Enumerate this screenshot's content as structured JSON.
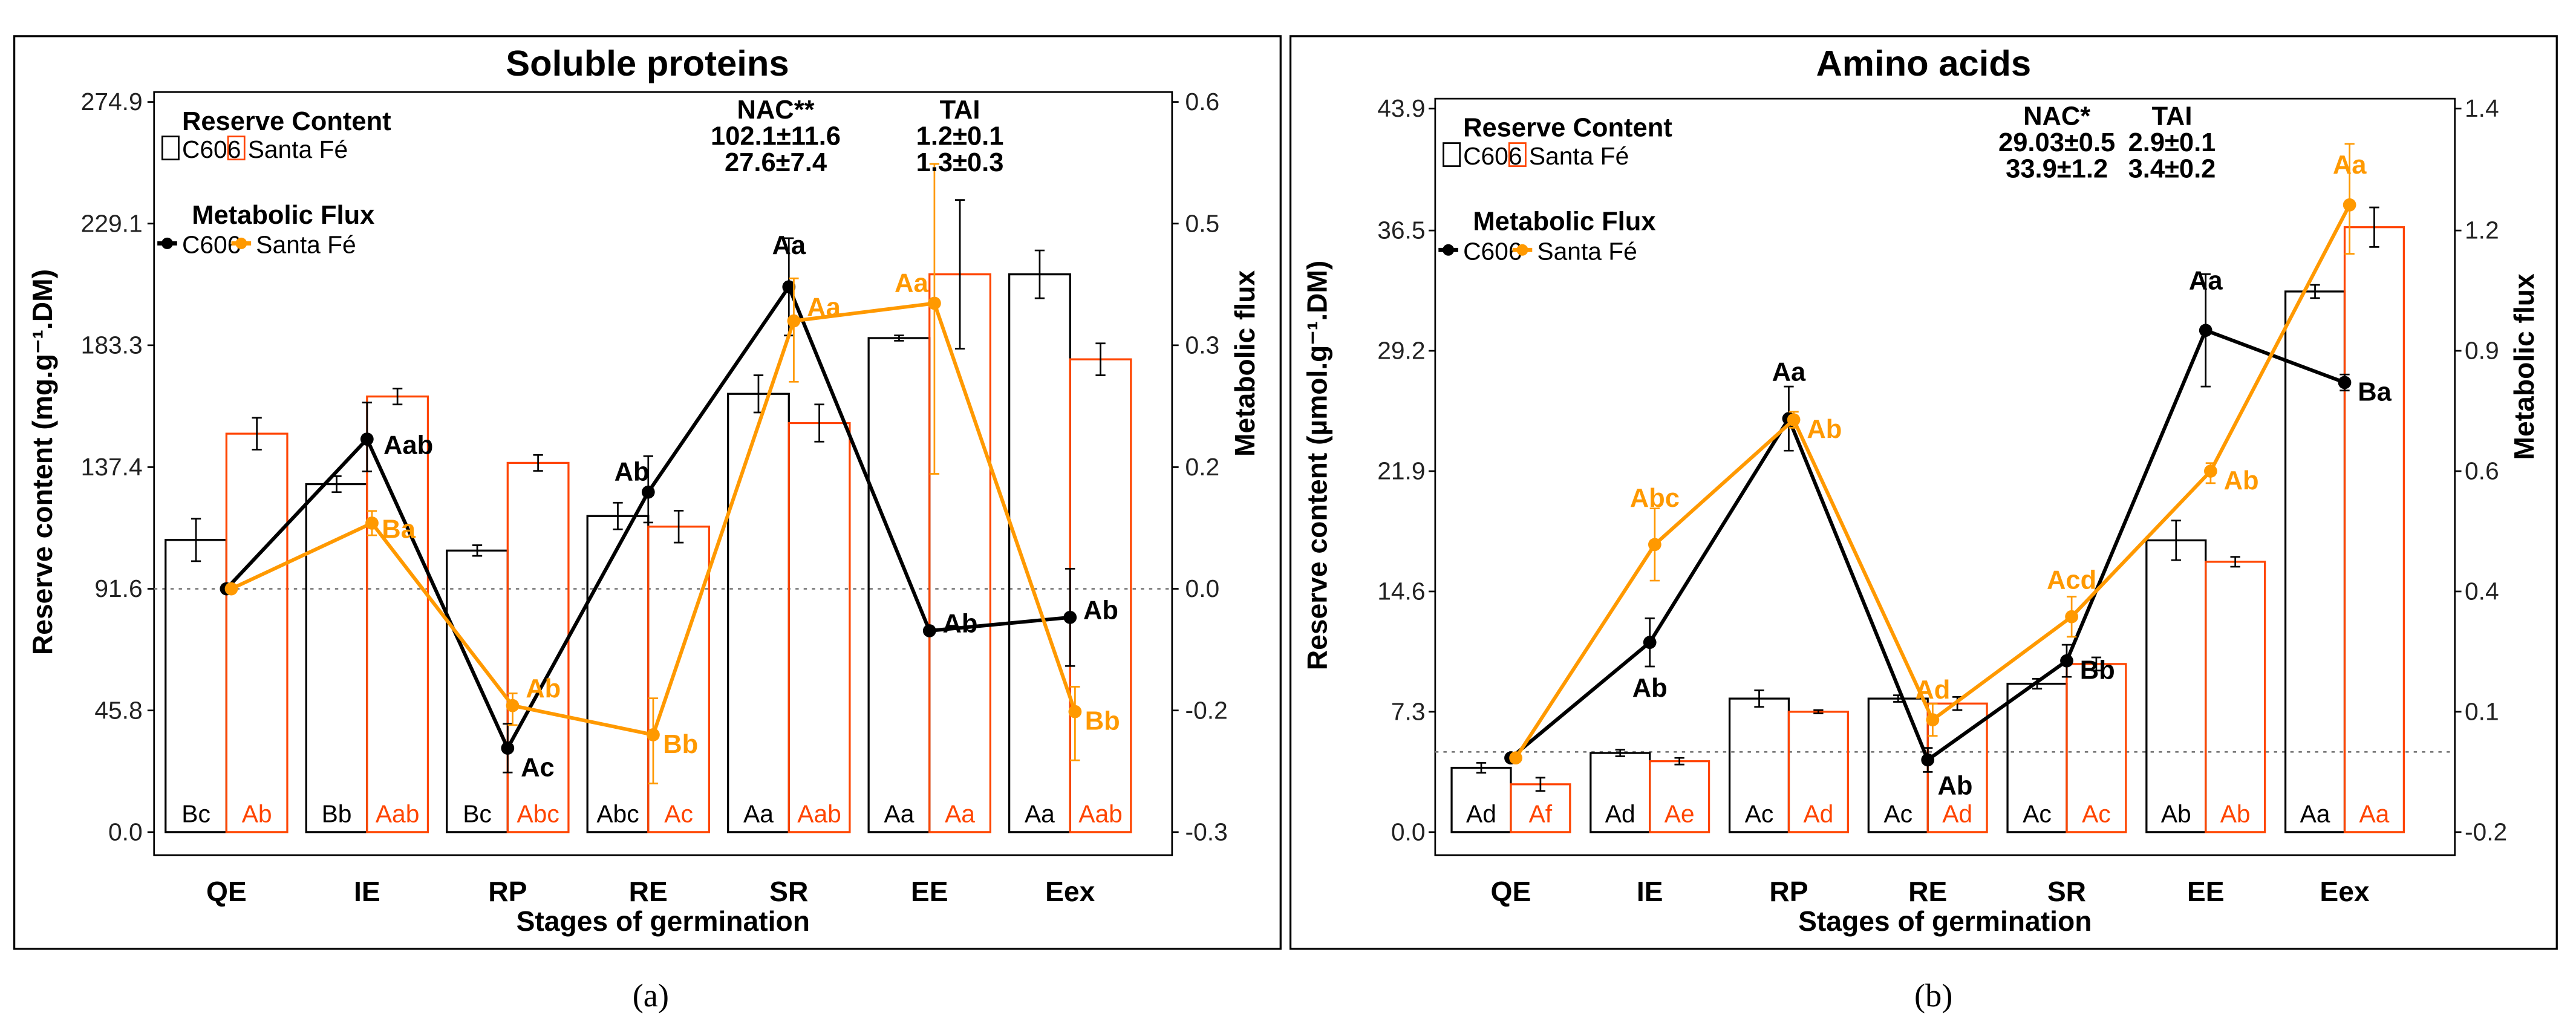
{
  "colors": {
    "c606": "#000000",
    "santa_fe_bar": "#ff4500",
    "santa_fe_line": "#ff9900"
  },
  "chart_data": [
    {
      "type": "bar+line",
      "panel_label": "(a)",
      "title": "Soluble proteins",
      "xlabel": "Stages of germination",
      "ylabel": "Reserve content (mg.g⁻¹.DM)",
      "y2label": "Metabolic flux",
      "categories": [
        "QE",
        "IE",
        "RP",
        "RE",
        "SR",
        "EE",
        "Eex"
      ],
      "yticks": [
        "0.0",
        "45.8",
        "91.6",
        "137.4",
        "183.3",
        "229.1",
        "274.9"
      ],
      "y2ticks": [
        "-0.3",
        "-0.2",
        "0.0",
        "0.2",
        "0.3",
        "0.5",
        "0.6"
      ],
      "ylim": [
        0,
        274.9
      ],
      "legend": {
        "reserve_title": "Reserve Content",
        "flux_title": "Metabolic Flux",
        "c606": "C606",
        "santa_fe": "Santa Fé"
      },
      "stats": {
        "nac_label": "NAC**",
        "tai_label": "TAI",
        "nac_c606": "102.1±11.6",
        "nac_sf": "27.6±7.4",
        "tai_c606": "1.2±0.1",
        "tai_sf": "1.3±0.3"
      },
      "bars": [
        {
          "name": "C606",
          "values": [
            110,
            131,
            106,
            119,
            165,
            186,
            210
          ],
          "errors": [
            8,
            3,
            2,
            5,
            7,
            1,
            9
          ],
          "letters": [
            "Bc",
            "Bb",
            "Bc",
            "Abc",
            "Aa",
            "Aa",
            "Aa"
          ]
        },
        {
          "name": "Santa Fé",
          "values": [
            150,
            164,
            139,
            115,
            154,
            210,
            178
          ],
          "errors": [
            6,
            3,
            3,
            6,
            7,
            28,
            6
          ],
          "letters": [
            "Ab",
            "Aab",
            "Abc",
            "Ac",
            "Aab",
            "Aa",
            "Aab"
          ]
        }
      ],
      "flux": [
        {
          "name": "C606",
          "values": [
            0.0,
            0.223,
            -0.231,
            0.159,
            0.396,
            -0.069,
            -0.047
          ],
          "errors": [
            0.005,
            0.03,
            0.02,
            0.05,
            0.08,
            0.003,
            0.08
          ],
          "letters": [
            "",
            "Aab",
            "Ac",
            "Ab",
            "Aa",
            "Ab",
            "Ab"
          ]
        },
        {
          "name": "Santa Fé",
          "values": [
            0.0,
            0.108,
            -0.192,
            -0.22,
            0.34,
            0.369,
            -0.201
          ],
          "errors": [
            0.005,
            0.02,
            0.02,
            0.04,
            0.07,
            0.18,
            0.04
          ],
          "letters": [
            "",
            "Ba",
            "Ab",
            "Bb",
            "Aa",
            "Aa",
            "Bb"
          ]
        }
      ]
    },
    {
      "type": "bar+line",
      "panel_label": "(b)",
      "title": "Amino acids",
      "xlabel": "Stages of germination",
      "ylabel": "Reserve content (µmol.g⁻¹.DM)",
      "y2label": "Metabolic flux",
      "categories": [
        "QE",
        "IE",
        "RP",
        "RE",
        "SR",
        "EE",
        "Eex"
      ],
      "yticks": [
        "0.0",
        "7.3",
        "14.6",
        "21.9",
        "29.2",
        "36.5",
        "43.9"
      ],
      "y2ticks": [
        "-0.2",
        "0.1",
        "0.4",
        "0.6",
        "0.9",
        "1.2",
        "1.4"
      ],
      "ylim": [
        0,
        43.9
      ],
      "legend": {
        "reserve_title": "Reserve Content",
        "flux_title": "Metabolic Flux",
        "c606": "C606",
        "santa_fe": "Santa Fé"
      },
      "stats": {
        "nac_label": "NAC*",
        "tai_label": "TAI",
        "nac_c606": "29.03±0.5",
        "nac_sf": "33.9±1.2",
        "tai_c606": "2.9±0.1",
        "tai_sf": "3.4±0.2"
      },
      "bars": [
        {
          "name": "C606",
          "values": [
            3.9,
            4.8,
            8.1,
            8.1,
            9.0,
            17.7,
            32.8
          ],
          "errors": [
            0.3,
            0.2,
            0.5,
            0.2,
            0.3,
            1.2,
            0.4
          ],
          "letters": [
            "Ad",
            "Ad",
            "Ac",
            "Ac",
            "Ac",
            "Ab",
            "Aa"
          ]
        },
        {
          "name": "Santa Fé",
          "values": [
            2.9,
            4.3,
            7.3,
            7.8,
            10.2,
            16.4,
            36.7
          ],
          "errors": [
            0.4,
            0.2,
            0.1,
            0.4,
            0.4,
            0.3,
            1.2
          ],
          "letters": [
            "Af",
            "Ae",
            "Ad",
            "Ad",
            "Ac",
            "Ab",
            "Aa"
          ]
        }
      ],
      "flux": [
        {
          "name": "C606",
          "values": [
            -0.015,
            0.273,
            0.731,
            -0.02,
            0.227,
            0.951,
            0.821
          ],
          "errors": [
            0.005,
            0.06,
            0.08,
            0.03,
            0.04,
            0.14,
            0.02
          ],
          "letters": [
            "",
            "Ab",
            "Aa",
            "Ab",
            "Bb",
            "Aa",
            "Ba"
          ]
        },
        {
          "name": "Santa Fé",
          "values": [
            -0.015,
            0.478,
            0.728,
            0.08,
            0.337,
            0.6,
            1.242
          ],
          "errors": [
            0.005,
            0.06,
            0.02,
            0.04,
            0.05,
            0.02,
            0.1
          ],
          "letters": [
            "",
            "Abc",
            "Ab",
            "Ad",
            "Acd",
            "Ab",
            "Aa"
          ]
        }
      ]
    }
  ]
}
